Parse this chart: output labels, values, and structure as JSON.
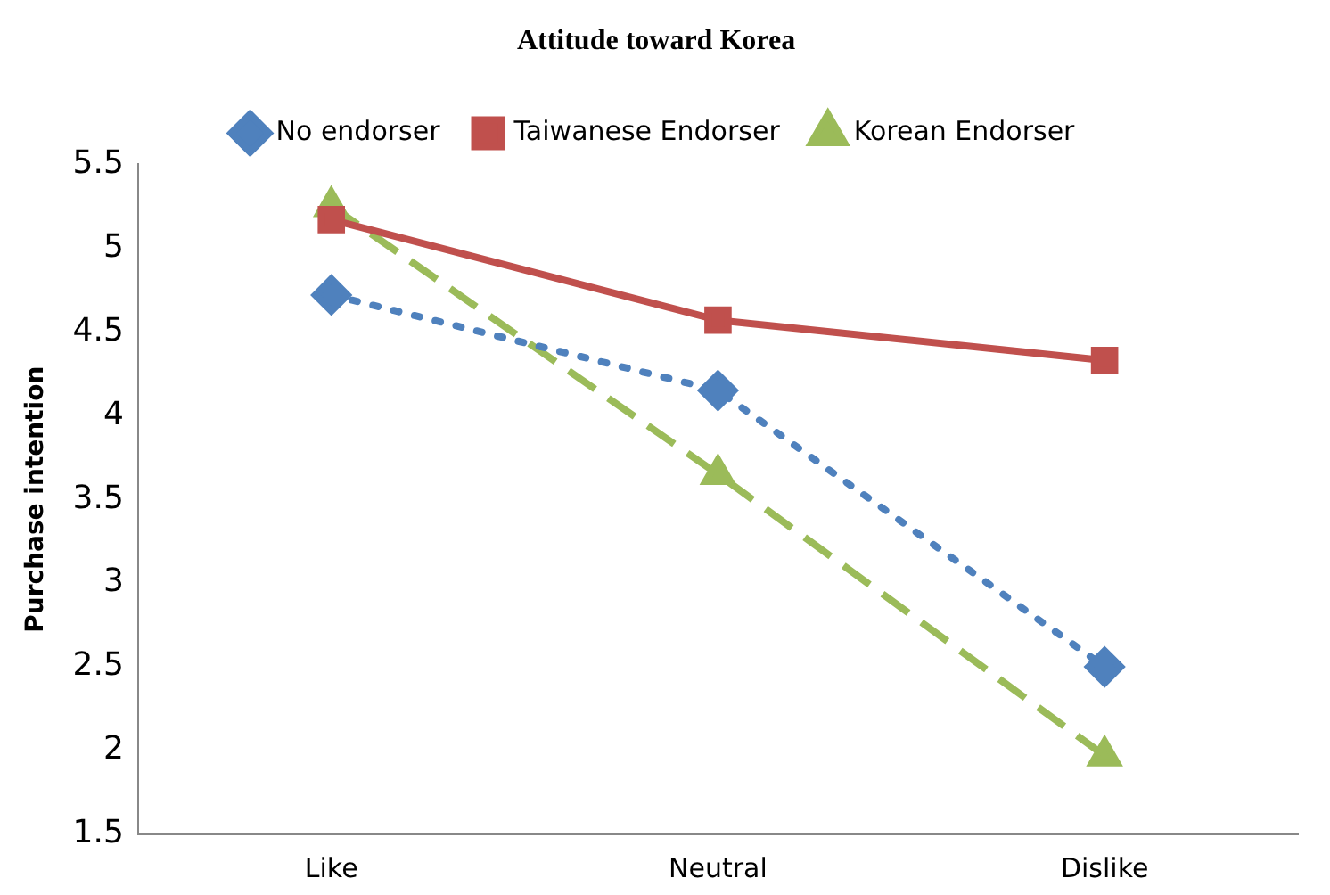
{
  "chart_data": {
    "type": "line",
    "title": "Attitude toward Korea",
    "ylabel": "Purchase intention",
    "categories": [
      "Like",
      "Neutral",
      "Dislike"
    ],
    "series": [
      {
        "name": "No endorser",
        "color": "#4f81bd",
        "values": [
          4.72,
          4.15,
          2.5
        ],
        "marker": "diamond",
        "line_style": "dotted"
      },
      {
        "name": "Taiwanese Endorser",
        "color": "#c0504d",
        "values": [
          5.17,
          4.57,
          4.33
        ],
        "marker": "square",
        "line_style": "solid"
      },
      {
        "name": "Korean Endorser",
        "color": "#9bbb59",
        "values": [
          5.25,
          3.65,
          1.97
        ],
        "marker": "triangle",
        "line_style": "dashed"
      }
    ],
    "ylim": [
      1.5,
      5.5
    ],
    "yticks": [
      1.5,
      2,
      2.5,
      3,
      3.5,
      4,
      4.5,
      5,
      5.5
    ],
    "grid": false,
    "legend": "top"
  }
}
